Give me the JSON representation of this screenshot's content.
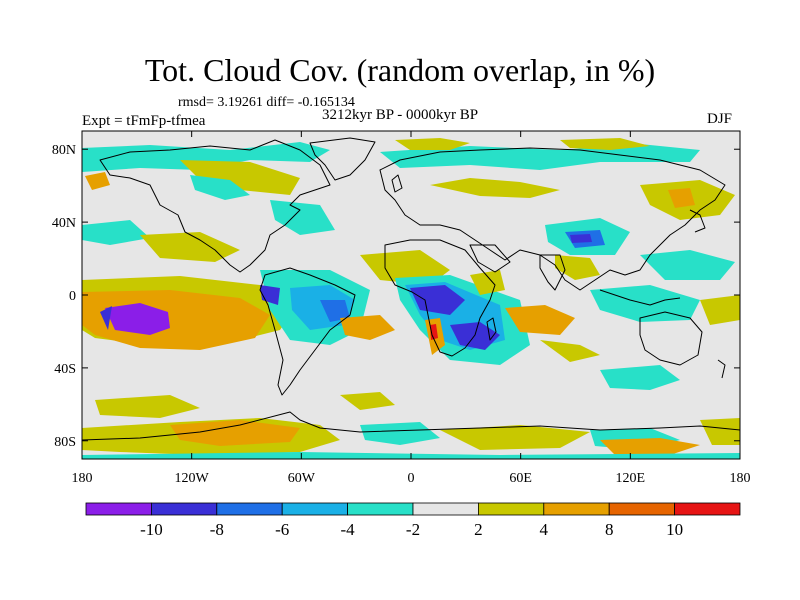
{
  "title": "Tot. Cloud Cov. (random overlap, in %)",
  "stats_line": "rmsd= 3.19261 diff= -0.165134",
  "period": "3212kyr BP - 0000kyr BP",
  "experiment": "Expt = tFmFp-tfmea",
  "season": "DJF",
  "map": {
    "projection": "cylindrical equidistant",
    "lon_range": [
      -180,
      180
    ],
    "lat_range": [
      -90,
      90
    ],
    "background_color": "#e6e6e6",
    "coastline_color": "#000000",
    "x_ticks": [
      {
        "value": -180,
        "label": "180"
      },
      {
        "value": -120,
        "label": "120W"
      },
      {
        "value": -60,
        "label": "60W"
      },
      {
        "value": 0,
        "label": "0"
      },
      {
        "value": 60,
        "label": "60E"
      },
      {
        "value": 120,
        "label": "120E"
      },
      {
        "value": 180,
        "label": "180"
      }
    ],
    "y_ticks": [
      {
        "value": 80,
        "label": "80N"
      },
      {
        "value": 40,
        "label": "40N"
      },
      {
        "value": 0,
        "label": "0"
      },
      {
        "value": -40,
        "label": "40S"
      },
      {
        "value": -80,
        "label": "80S"
      }
    ]
  },
  "colorbar": {
    "colors": [
      "#8b1ee8",
      "#3a2fd6",
      "#1f6fe6",
      "#1ab0e6",
      "#28e0c8",
      "#e6e6e6",
      "#c8c800",
      "#e6a000",
      "#e66400",
      "#e61414"
    ],
    "labels": [
      {
        "index": 1,
        "label": "-10"
      },
      {
        "index": 2,
        "label": "-8"
      },
      {
        "index": 3,
        "label": "-6"
      },
      {
        "index": 4,
        "label": "-4"
      },
      {
        "index": 5,
        "label": "-2"
      },
      {
        "index": 6,
        "label": "2"
      },
      {
        "index": 7,
        "label": "4"
      },
      {
        "index": 8,
        "label": "8"
      },
      {
        "index": 9,
        "label": "10"
      }
    ]
  }
}
